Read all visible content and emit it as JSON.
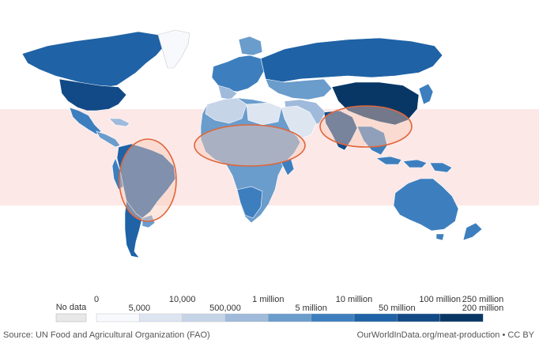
{
  "legend": {
    "no_data_label": "No data",
    "top_labels": [
      "0",
      "10,000",
      "1 million",
      "10 million",
      "100 million",
      "250 million"
    ],
    "bottom_labels": [
      "5,000",
      "500,000",
      "5 million",
      "50 million",
      "200 million"
    ],
    "bin_colors": [
      "#f7f9fc",
      "#dde5f1",
      "#c6d4e8",
      "#9fbadb",
      "#6a9ccc",
      "#3d7fbe",
      "#1f62a6",
      "#124a87",
      "#083766"
    ],
    "no_data_color": "#e8e8e8"
  },
  "colors": {
    "tropics_band": "#fde8e8",
    "highlight_ellipse": "#e0663a",
    "highlight_fill": "#f7c9b6"
  },
  "footer": {
    "source": "Source: UN Food and Agricultural Organization (FAO)",
    "credit": "OurWorldInData.org/meat-production • CC BY"
  }
}
